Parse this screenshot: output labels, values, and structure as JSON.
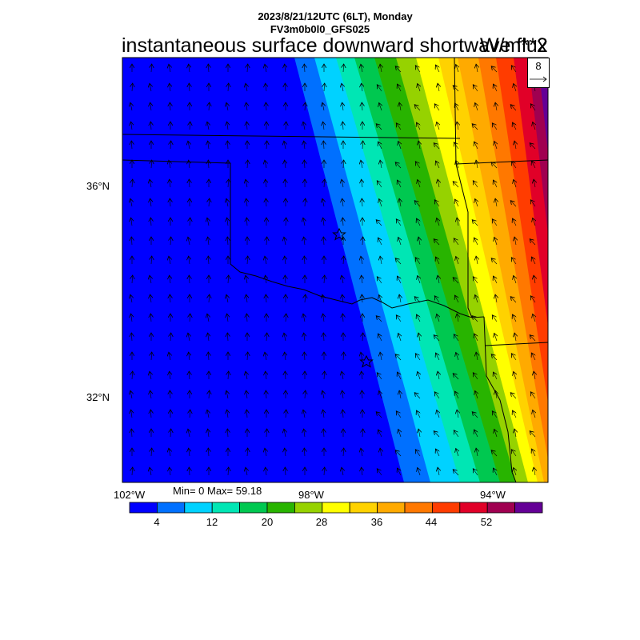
{
  "header": {
    "date_line": "2023/8/21/12UTC (6LT), Monday",
    "model_line": "FV3m0b0l0_GFS025",
    "title": "instantaneous surface downward shortwave flux",
    "units": "W/m**2"
  },
  "map": {
    "lat_labels": [
      "36°N",
      "32°N"
    ],
    "lon_labels": [
      "102°W",
      "98°W",
      "94°W"
    ],
    "stats": "Min= 0 Max= 59.18",
    "reference_vector_label": "8",
    "city_markers": [
      "star-north",
      "star-south"
    ]
  },
  "colorbar": {
    "colors": [
      "#0000ff",
      "#0070ff",
      "#00d2ff",
      "#00e6b4",
      "#00c850",
      "#28b400",
      "#96d200",
      "#ffff00",
      "#ffd200",
      "#ffaa00",
      "#ff7800",
      "#ff3c00",
      "#e10028",
      "#a00050",
      "#640096"
    ],
    "tick_labels": [
      "4",
      "12",
      "20",
      "28",
      "36",
      "44",
      "52"
    ]
  }
}
